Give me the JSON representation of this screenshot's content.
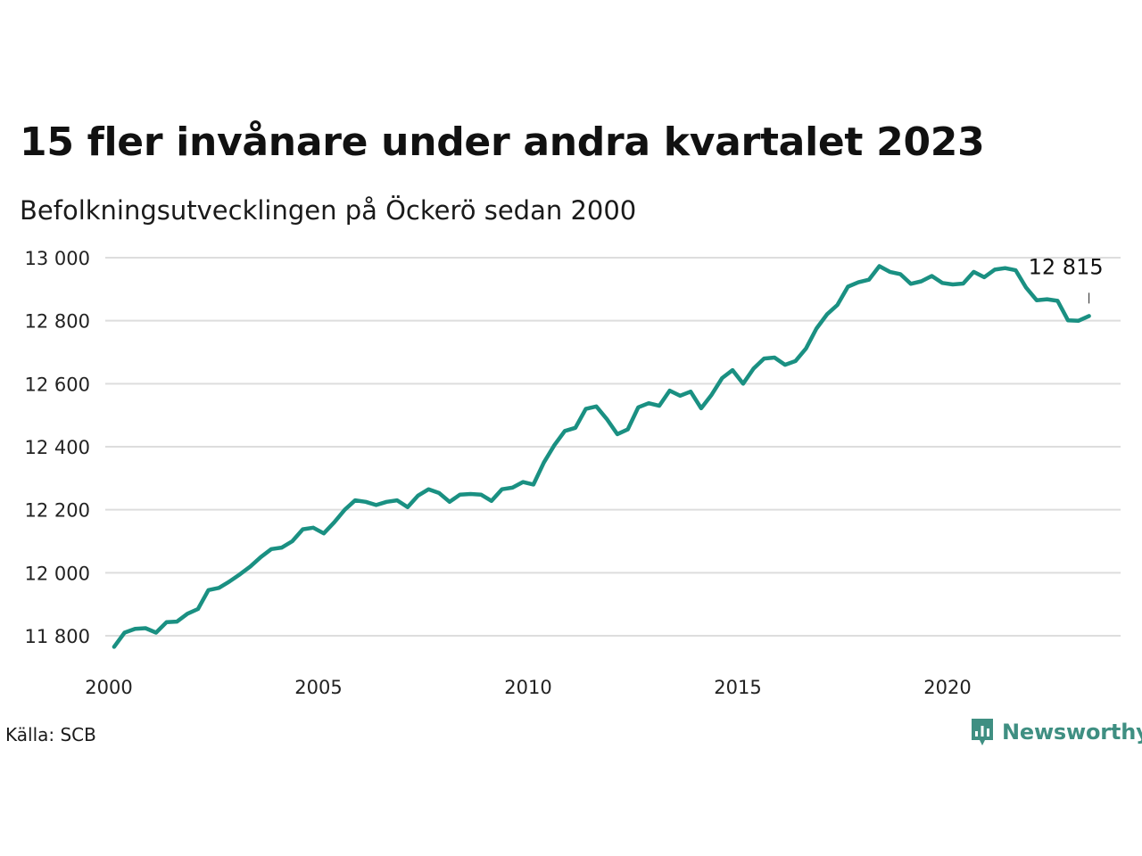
{
  "header": {
    "title": "15 fler invånare under andra kvartalet 2023",
    "subtitle": "Befolkningsutvecklingen på Öckerö sedan 2000"
  },
  "footer": {
    "source": "Källa: SCB",
    "brand": "Newsworthy",
    "brand_icon": "newsworthy-logo-icon"
  },
  "colors": {
    "line": "#1a9082",
    "grid": "#dddddd",
    "brand": "#3f8f82"
  },
  "chart_data": {
    "type": "line",
    "title": "15 fler invånare under andra kvartalet 2023",
    "subtitle": "Befolkningsutvecklingen på Öckerö sedan 2000",
    "xlabel": "",
    "ylabel": "",
    "xlim": [
      2000,
      2024.5
    ],
    "ylim": [
      11750,
      13000
    ],
    "x_ticks": [
      2000,
      2005,
      2010,
      2015,
      2020
    ],
    "x_tick_labels": [
      "2000",
      "2005",
      "2010",
      "2015",
      "2020"
    ],
    "y_ticks": [
      11800,
      12000,
      12200,
      12400,
      12600,
      12800,
      13000
    ],
    "y_tick_labels": [
      "11 800",
      "12 000",
      "12 200",
      "12 400",
      "12 600",
      "12 800",
      "13 000"
    ],
    "grid": "horizontal",
    "legend": "none",
    "end_label": "12 815",
    "x": [
      2000.125,
      2000.375,
      2000.625,
      2000.875,
      2001.125,
      2001.375,
      2001.625,
      2001.875,
      2002.125,
      2002.375,
      2002.625,
      2002.875,
      2003.125,
      2003.375,
      2003.625,
      2003.875,
      2004.125,
      2004.375,
      2004.625,
      2004.875,
      2005.125,
      2005.375,
      2005.625,
      2005.875,
      2006.125,
      2006.375,
      2006.625,
      2006.875,
      2007.125,
      2007.375,
      2007.625,
      2007.875,
      2008.125,
      2008.375,
      2008.625,
      2008.875,
      2009.125,
      2009.375,
      2009.625,
      2009.875,
      2010.125,
      2010.375,
      2010.625,
      2010.875,
      2011.125,
      2011.375,
      2011.625,
      2011.875,
      2012.125,
      2012.375,
      2012.625,
      2012.875,
      2013.125,
      2013.375,
      2013.625,
      2013.875,
      2014.125,
      2014.375,
      2014.625,
      2014.875,
      2015.125,
      2015.375,
      2015.625,
      2015.875,
      2016.125,
      2016.375,
      2016.625,
      2016.875,
      2017.125,
      2017.375,
      2017.625,
      2017.875,
      2018.125,
      2018.375,
      2018.625,
      2018.875,
      2019.125,
      2019.375,
      2019.625,
      2019.875,
      2020.125,
      2020.375,
      2020.625,
      2020.875,
      2021.125,
      2021.375,
      2021.625,
      2021.875,
      2022.125,
      2022.375,
      2022.625,
      2022.875,
      2023.125,
      2023.375
    ],
    "series": [
      {
        "values": [
          11765,
          11810,
          11822,
          11824,
          11810,
          11843,
          11845,
          11870,
          11885,
          11945,
          11952,
          11972,
          11995,
          12020,
          12050,
          12075,
          12080,
          12100,
          12138,
          12143,
          12125,
          12160,
          12200,
          12230,
          12225,
          12215,
          12225,
          12230,
          12208,
          12245,
          12265,
          12253,
          12225,
          12248,
          12250,
          12248,
          12228,
          12265,
          12270,
          12288,
          12280,
          12350,
          12405,
          12450,
          12460,
          12520,
          12528,
          12488,
          12440,
          12455,
          12525,
          12538,
          12530,
          12578,
          12562,
          12575,
          12522,
          12565,
          12618,
          12643,
          12600,
          12648,
          12680,
          12683,
          12660,
          12672,
          12712,
          12775,
          12820,
          12850,
          12908,
          12922,
          12930,
          12973,
          12955,
          12948,
          12917,
          12925,
          12942,
          12920,
          12915,
          12918,
          12955,
          12938,
          12962,
          12967,
          12960,
          12905,
          12865,
          12868,
          12863,
          12801,
          12800,
          12815
        ]
      }
    ]
  }
}
